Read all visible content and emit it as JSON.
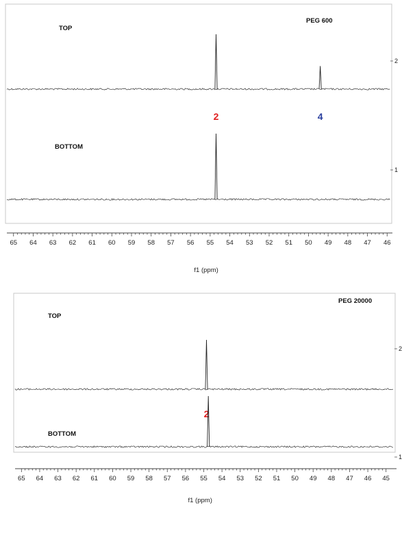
{
  "chart_data": [
    {
      "type": "line",
      "title": "PEG 600",
      "xlabel": "f1 (ppm)",
      "xlim": [
        65.2,
        45.8
      ],
      "x_ticks": [
        65,
        64,
        63,
        62,
        61,
        60,
        59,
        58,
        57,
        56,
        55,
        54,
        53,
        52,
        51,
        50,
        49,
        48,
        47,
        46
      ],
      "y_trace_labels": [
        "2",
        "1"
      ],
      "series": [
        {
          "name": "TOP",
          "trace_label": "2",
          "baseline": 0,
          "peaks": [
            {
              "x": 54.7,
              "height": 1.0,
              "label": "2",
              "label_color": "#e02020"
            },
            {
              "x": 49.4,
              "height": 0.42,
              "label": "4",
              "label_color": "#2a3f9e"
            }
          ]
        },
        {
          "name": "BOTTOM",
          "trace_label": "1",
          "baseline": 0,
          "peaks": [
            {
              "x": 54.7,
              "height": 1.0
            }
          ]
        }
      ],
      "grid": false
    },
    {
      "type": "line",
      "title": "PEG 20000",
      "xlabel": "f1 (ppm)",
      "xlim": [
        65.2,
        44.5
      ],
      "x_ticks": [
        65,
        64,
        63,
        62,
        61,
        60,
        59,
        58,
        57,
        56,
        55,
        54,
        53,
        52,
        51,
        50,
        49,
        48,
        47,
        46,
        45
      ],
      "y_trace_labels": [
        "2",
        "1"
      ],
      "series": [
        {
          "name": "TOP",
          "trace_label": "2",
          "baseline": 0,
          "peaks": [
            {
              "x": 54.85,
              "height": 1.0,
              "label": "2",
              "label_color": "#e02020"
            }
          ]
        },
        {
          "name": "BOTTOM",
          "trace_label": "1",
          "baseline": 0,
          "peaks": [
            {
              "x": 54.75,
              "height": 1.0
            }
          ]
        }
      ],
      "grid": false
    }
  ]
}
